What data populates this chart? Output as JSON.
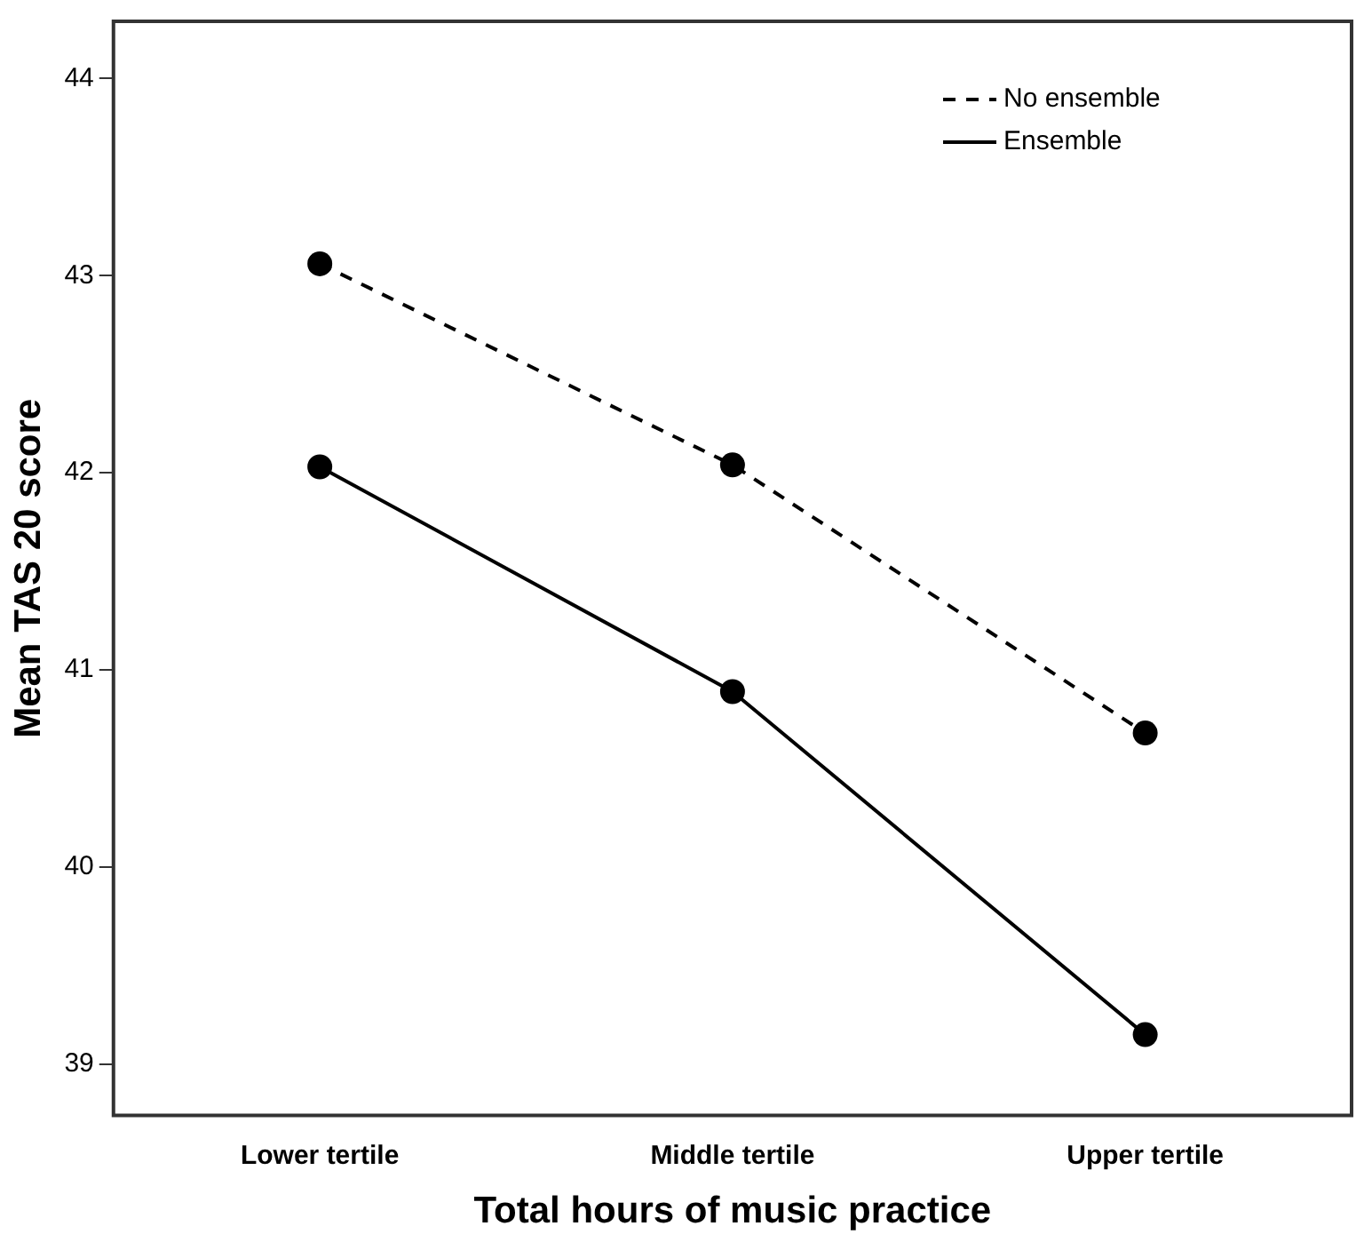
{
  "chart_data": {
    "type": "line",
    "xlabel": "Total hours of music practice",
    "ylabel": "Mean TAS 20 score",
    "categories": [
      "Lower tertile",
      "Middle tertile",
      "Upper tertile"
    ],
    "series": [
      {
        "name": "No ensemble",
        "color": "#000000",
        "line_style": "dashed",
        "values": [
          43.06,
          42.04,
          40.68
        ]
      },
      {
        "name": "Ensemble",
        "color": "#000000",
        "line_style": "solid",
        "values": [
          42.03,
          40.89,
          39.15
        ]
      }
    ],
    "ylim": [
      38.74,
      44.29
    ],
    "yticks": [
      39,
      40,
      41,
      42,
      43,
      44
    ],
    "grid": false,
    "legend": "top right",
    "marker": "circle"
  }
}
